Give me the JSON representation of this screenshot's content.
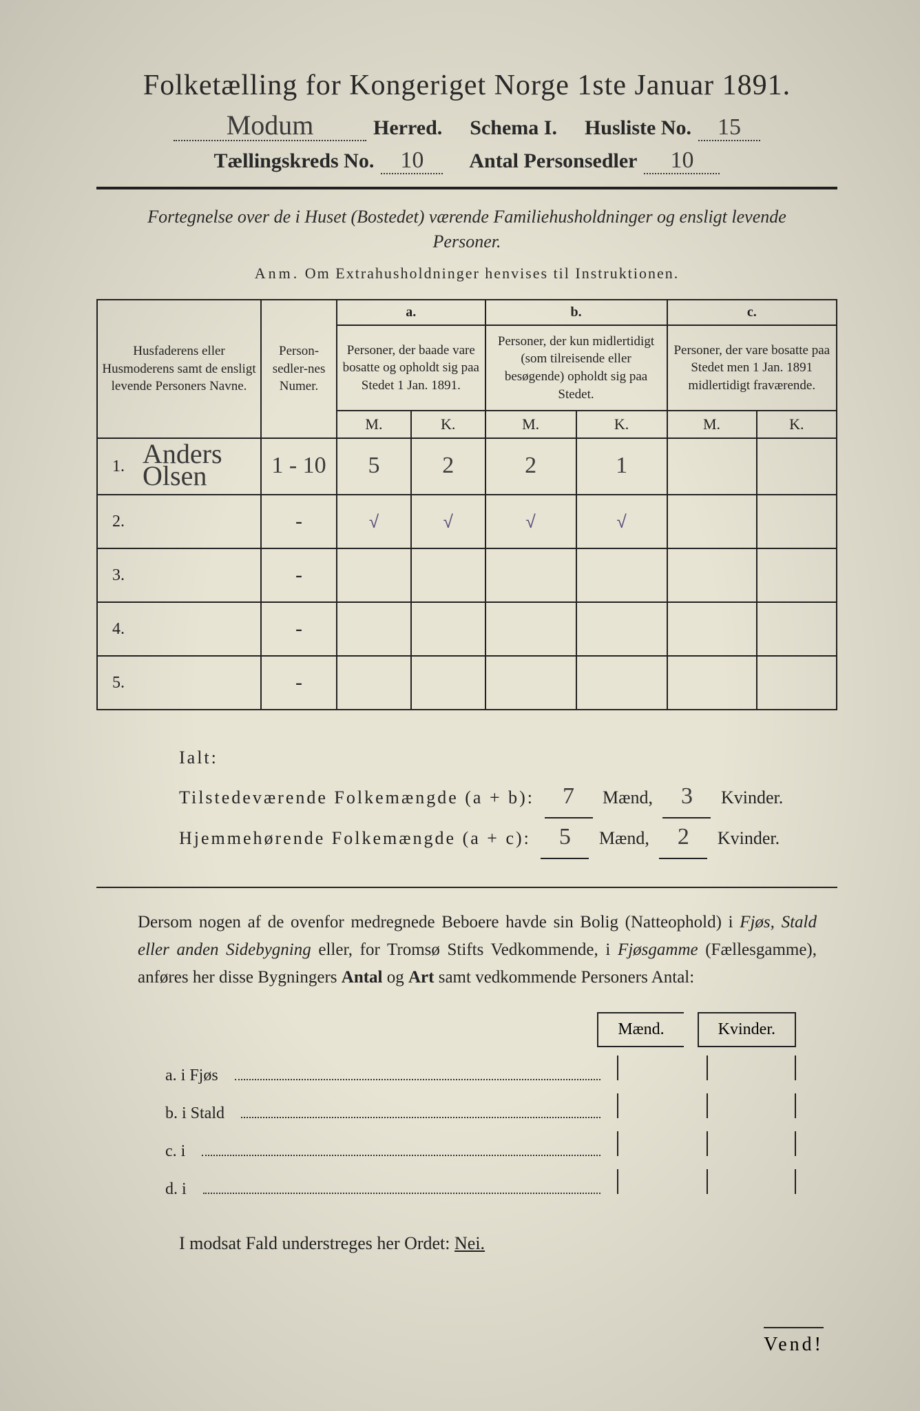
{
  "title": "Folketælling for Kongeriget Norge 1ste Januar 1891.",
  "header": {
    "herred_value": "Modum",
    "herred_label": "Herred.",
    "schema_label": "Schema I.",
    "husliste_label": "Husliste No.",
    "husliste_value": "15",
    "kreds_label": "Tællingskreds No.",
    "kreds_value": "10",
    "antal_label": "Antal Personsedler",
    "antal_value": "10"
  },
  "subtitle": "Fortegnelse over de i Huset (Bostedet) værende Familiehusholdninger og ensligt levende Personer.",
  "anm_prefix": "Anm.",
  "anm_text": "Om Extrahusholdninger henvises til Instruktionen.",
  "table": {
    "col_names": "Husfaderens eller Husmoderens samt de ensligt levende Personers Navne.",
    "col_numer": "Person-sedler-nes Numer.",
    "a_label": "a.",
    "a_text": "Personer, der baade vare bosatte og opholdt sig paa Stedet 1 Jan. 1891.",
    "b_label": "b.",
    "b_text": "Personer, der kun midlertidigt (som tilreisende eller besøgende) opholdt sig paa Stedet.",
    "c_label": "c.",
    "c_text": "Personer, der vare bosatte paa Stedet men 1 Jan. 1891 midlertidigt fraværende.",
    "m": "M.",
    "k": "K.",
    "rows": [
      {
        "n": "1.",
        "name": "Anders Olsen",
        "numer": "1 - 10",
        "am": "5",
        "ak": "2",
        "bm": "2",
        "bk": "1",
        "cm": "",
        "ck": ""
      },
      {
        "n": "2.",
        "name": "",
        "numer": "-",
        "am": "√",
        "ak": "√",
        "bm": "√",
        "bk": "√",
        "cm": "",
        "ck": ""
      },
      {
        "n": "3.",
        "name": "",
        "numer": "-",
        "am": "",
        "ak": "",
        "bm": "",
        "bk": "",
        "cm": "",
        "ck": ""
      },
      {
        "n": "4.",
        "name": "",
        "numer": "-",
        "am": "",
        "ak": "",
        "bm": "",
        "bk": "",
        "cm": "",
        "ck": ""
      },
      {
        "n": "5.",
        "name": "",
        "numer": "-",
        "am": "",
        "ak": "",
        "bm": "",
        "bk": "",
        "cm": "",
        "ck": ""
      }
    ]
  },
  "ialt": {
    "heading": "Ialt:",
    "line1_label": "Tilstedeværende Folkemængde (a + b):",
    "line1_m": "7",
    "line1_k": "3",
    "line2_label": "Hjemmehørende Folkemængde (a + c):",
    "line2_m": "5",
    "line2_k": "2",
    "maend": "Mænd,",
    "kvinder": "Kvinder."
  },
  "para": "Dersom nogen af de ovenfor medregnede Beboere havde sin Bolig (Natteophold) i Fjøs, Stald eller anden Sidebygning eller, for Tromsø Stifts Vedkommende, i Fjøsgamme (Fællesgamme), anføres her disse Bygningers Antal og Art samt vedkommende Personers Antal:",
  "mk": {
    "m": "Mænd.",
    "k": "Kvinder."
  },
  "list": {
    "a": "a.  i      Fjøs",
    "b": "b.  i      Stald",
    "c": "c.  i",
    "d": "d.  i"
  },
  "nei": {
    "prefix": "I modsat Fald understreges her Ordet:",
    "word": "Nei."
  },
  "vend": "Vend!"
}
